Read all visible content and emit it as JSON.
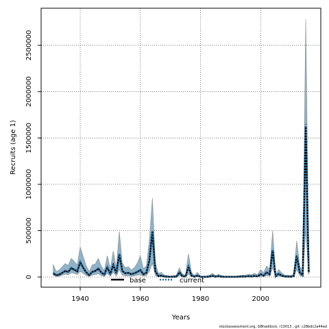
{
  "chart_data": {
    "type": "line",
    "xlabel": "Years",
    "ylabel": "Recruits (age 1)",
    "xlim": [
      1927,
      2020
    ],
    "ylim": [
      -110000,
      2900000
    ],
    "xticks": [
      1940,
      1960,
      1980,
      2000
    ],
    "yticks": [
      0,
      500000,
      1000000,
      1500000,
      2000000,
      2500000
    ],
    "grid": true,
    "legend_position": "bottom-center",
    "colors": {
      "band": "#8fb3c9",
      "band_edge": "#8a8a8a",
      "base": "#000000",
      "current": "#1f6fa8"
    },
    "series": [
      {
        "name": "base",
        "style": "solid",
        "x": [
          1931,
          1932,
          1933,
          1934,
          1935,
          1936,
          1937,
          1938,
          1939,
          1940,
          1941,
          1942,
          1943,
          1944,
          1945,
          1946,
          1947,
          1948,
          1949,
          1950,
          1951,
          1952,
          1953,
          1954,
          1955,
          1956,
          1957,
          1958,
          1959,
          1960,
          1961,
          1962,
          1963,
          1964,
          1965,
          1966,
          1967,
          1968,
          1969,
          1970,
          1971,
          1972,
          1973,
          1974,
          1975,
          1976,
          1977,
          1978,
          1979,
          1980,
          1981,
          1982,
          1983,
          1984,
          1985,
          1986,
          1987,
          1988,
          1989,
          1990,
          1991,
          1992,
          1993,
          1994,
          1995,
          1996,
          1997,
          1998,
          1999,
          2000,
          2001,
          2002,
          2003,
          2004,
          2005,
          2006,
          2007,
          2008,
          2009,
          2010,
          2011,
          2012,
          2013,
          2014,
          2015,
          2016
        ],
        "y": [
          40000,
          20000,
          25000,
          45000,
          65000,
          55000,
          95000,
          80000,
          60000,
          160000,
          100000,
          50000,
          20000,
          55000,
          65000,
          90000,
          50000,
          25000,
          105000,
          35000,
          130000,
          40000,
          245000,
          65000,
          40000,
          45000,
          30000,
          40000,
          55000,
          75000,
          30000,
          45000,
          180000,
          490000,
          60000,
          10000,
          15000,
          5000,
          3000,
          2000,
          3000,
          4000,
          50000,
          8000,
          5000,
          110000,
          15000,
          3000,
          15000,
          2000,
          2000,
          2000,
          5000,
          12000,
          4000,
          8000,
          3000,
          2000,
          2000,
          2000,
          2000,
          2000,
          4000,
          5000,
          5000,
          8000,
          6000,
          12000,
          6000,
          30000,
          15000,
          50000,
          30000,
          290000,
          5000,
          35000,
          15000,
          5000,
          5000,
          3000,
          10000,
          230000,
          50000,
          20000,
          1620000,
          50000
        ]
      },
      {
        "name": "current",
        "style": "dotted",
        "x": [
          1931,
          1932,
          1933,
          1934,
          1935,
          1936,
          1937,
          1938,
          1939,
          1940,
          1941,
          1942,
          1943,
          1944,
          1945,
          1946,
          1947,
          1948,
          1949,
          1950,
          1951,
          1952,
          1953,
          1954,
          1955,
          1956,
          1957,
          1958,
          1959,
          1960,
          1961,
          1962,
          1963,
          1964,
          1965,
          1966,
          1967,
          1968,
          1969,
          1970,
          1971,
          1972,
          1973,
          1974,
          1975,
          1976,
          1977,
          1978,
          1979,
          1980,
          1981,
          1982,
          1983,
          1984,
          1985,
          1986,
          1987,
          1988,
          1989,
          1990,
          1991,
          1992,
          1993,
          1994,
          1995,
          1996,
          1997,
          1998,
          1999,
          2000,
          2001,
          2002,
          2003,
          2004,
          2005,
          2006,
          2007,
          2008,
          2009,
          2010,
          2011,
          2012,
          2013,
          2014,
          2015,
          2016
        ],
        "y": [
          45000,
          22000,
          28000,
          48000,
          70000,
          58000,
          100000,
          85000,
          65000,
          165000,
          105000,
          52000,
          22000,
          58000,
          68000,
          95000,
          52000,
          27000,
          110000,
          37000,
          135000,
          42000,
          250000,
          68000,
          42000,
          47000,
          32000,
          42000,
          58000,
          78000,
          32000,
          47000,
          185000,
          495000,
          62000,
          12000,
          16000,
          6000,
          4000,
          3000,
          4000,
          5000,
          52000,
          9000,
          6000,
          115000,
          16000,
          4000,
          16000,
          3000,
          3000,
          3000,
          6000,
          13000,
          5000,
          9000,
          4000,
          3000,
          3000,
          3000,
          3000,
          3000,
          5000,
          6000,
          6000,
          9000,
          7000,
          13000,
          7000,
          32000,
          16000,
          52000,
          32000,
          295000,
          6000,
          37000,
          16000,
          6000,
          6000,
          4000,
          11000,
          235000,
          52000,
          22000,
          1650000,
          55000
        ]
      }
    ],
    "band": {
      "x": [
        1931,
        1932,
        1933,
        1934,
        1935,
        1936,
        1937,
        1938,
        1939,
        1940,
        1941,
        1942,
        1943,
        1944,
        1945,
        1946,
        1947,
        1948,
        1949,
        1950,
        1951,
        1952,
        1953,
        1954,
        1955,
        1956,
        1957,
        1958,
        1959,
        1960,
        1961,
        1962,
        1963,
        1964,
        1965,
        1966,
        1967,
        1968,
        1969,
        1970,
        1971,
        1972,
        1973,
        1974,
        1975,
        1976,
        1977,
        1978,
        1979,
        1980,
        1981,
        1982,
        1983,
        1984,
        1985,
        1986,
        1987,
        1988,
        1989,
        1990,
        1991,
        1992,
        1993,
        1994,
        1995,
        1996,
        1997,
        1998,
        1999,
        2000,
        2001,
        2002,
        2003,
        2004,
        2005,
        2006,
        2007,
        2008,
        2009,
        2010,
        2011,
        2012,
        2013,
        2014,
        2015,
        2016
      ],
      "lower": [
        20000,
        5000,
        8000,
        20000,
        30000,
        25000,
        45000,
        40000,
        25000,
        60000,
        40000,
        15000,
        5000,
        20000,
        25000,
        35000,
        15000,
        5000,
        40000,
        10000,
        50000,
        10000,
        80000,
        20000,
        10000,
        12000,
        8000,
        12000,
        20000,
        25000,
        8000,
        15000,
        60000,
        150000,
        15000,
        2000,
        3000,
        1000,
        1000,
        500,
        1000,
        1000,
        15000,
        2000,
        1000,
        30000,
        3000,
        1000,
        3000,
        500,
        500,
        500,
        1000,
        3000,
        1000,
        2000,
        1000,
        500,
        500,
        500,
        500,
        500,
        1000,
        1000,
        1000,
        2000,
        1500,
        3000,
        1500,
        8000,
        4000,
        15000,
        8000,
        100000,
        1000,
        10000,
        4000,
        1000,
        1000,
        1000,
        3000,
        80000,
        15000,
        5000,
        500000,
        20000
      ],
      "upper": [
        135000,
        60000,
        75000,
        110000,
        145000,
        125000,
        200000,
        170000,
        130000,
        325000,
        220000,
        120000,
        60000,
        130000,
        140000,
        200000,
        120000,
        70000,
        230000,
        90000,
        280000,
        100000,
        490000,
        150000,
        100000,
        110000,
        75000,
        100000,
        150000,
        230000,
        90000,
        120000,
        400000,
        850000,
        150000,
        40000,
        50000,
        20000,
        15000,
        10000,
        15000,
        20000,
        100000,
        30000,
        20000,
        250000,
        50000,
        15000,
        50000,
        10000,
        10000,
        10000,
        20000,
        40000,
        15000,
        30000,
        15000,
        10000,
        10000,
        10000,
        10000,
        10000,
        15000,
        20000,
        20000,
        30000,
        25000,
        40000,
        25000,
        80000,
        45000,
        120000,
        80000,
        500000,
        20000,
        80000,
        45000,
        20000,
        20000,
        15000,
        30000,
        390000,
        120000,
        60000,
        2780000,
        240000
      ]
    }
  },
  "footer_text": "stockassessment.org, GBhaddock, r13013 ,  git: c28bdc2a44ad"
}
